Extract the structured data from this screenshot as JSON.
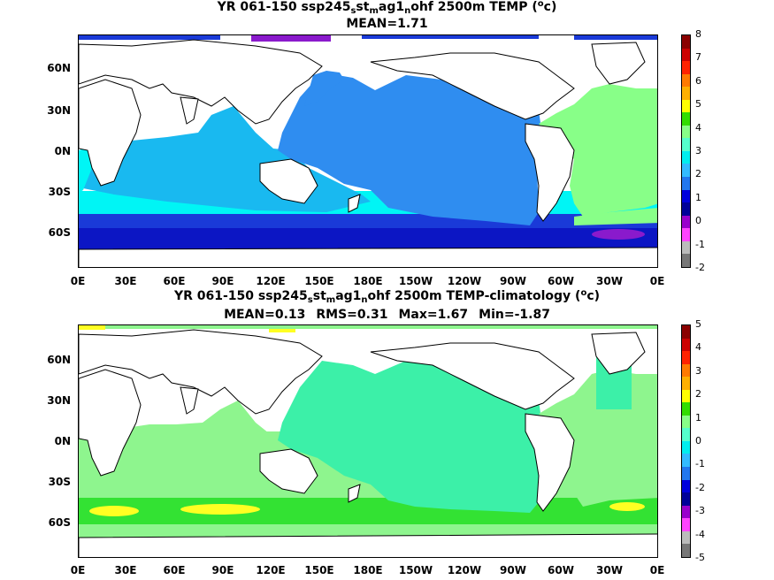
{
  "panel1": {
    "title_parts": [
      "YR 061-150 ssp245",
      "s",
      "st",
      "m",
      "ag1",
      "n",
      "ohf 2500m TEMP (",
      "o",
      "c)"
    ],
    "mean_label": "MEAN=1.71",
    "lat_labels": [
      "60N",
      "30N",
      "0N",
      "30S",
      "60S"
    ],
    "lon_labels": [
      "0E",
      "30E",
      "60E",
      "90E",
      "120E",
      "150E",
      "180E",
      "150W",
      "120W",
      "90W",
      "60W",
      "30W",
      "0E"
    ],
    "colorbar_labels": [
      "8",
      "7",
      "6",
      "5",
      "4",
      "3",
      "2",
      "1",
      "0",
      "-1",
      "-2"
    ],
    "colorbar_colors": [
      "#8b0000",
      "#cc0000",
      "#ff2200",
      "#ff7a00",
      "#ffb000",
      "#ffff00",
      "#33dd00",
      "#88ff88",
      "#55ffcc",
      "#00eeee",
      "#33bbff",
      "#2277ee",
      "#0000dd",
      "#000099",
      "#9900cc",
      "#ff44ff",
      "#bbbbbb",
      "#777777"
    ]
  },
  "panel2": {
    "title_parts": [
      "YR 061-150 ssp245",
      "s",
      "st",
      "m",
      "ag1",
      "n",
      "ohf 2500m TEMP-climatology (",
      "o",
      "c)"
    ],
    "stats": [
      "MEAN=0.13",
      "RMS=0.31",
      "Max=1.67",
      "Min=-1.87"
    ],
    "lat_labels": [
      "60N",
      "30N",
      "0N",
      "30S",
      "60S"
    ],
    "lon_labels": [
      "0E",
      "30E",
      "60E",
      "90E",
      "120E",
      "150E",
      "180E",
      "150W",
      "120W",
      "90W",
      "60W",
      "30W",
      "0E"
    ],
    "colorbar_labels": [
      "5",
      "4",
      "3",
      "2",
      "1",
      "0",
      "-1",
      "-2",
      "-3",
      "-4",
      "-5"
    ],
    "colorbar_colors": [
      "#8b0000",
      "#cc0000",
      "#ff2200",
      "#ff7a00",
      "#ffb000",
      "#ffff00",
      "#33dd00",
      "#88ff88",
      "#55ffcc",
      "#00eeee",
      "#33bbff",
      "#2277ee",
      "#0000dd",
      "#000099",
      "#9900cc",
      "#ff44ff",
      "#bbbbbb",
      "#777777"
    ]
  },
  "colors": {
    "ocean_main": "#2f8df0",
    "ocean_light": "#19b9f0",
    "ocean_cyan": "#00f5f5",
    "ocean_green": "#88ff88",
    "ocean_blue": "#1a3ad8",
    "ocean_darkblue": "#0c16c4",
    "ocean_purple": "#8a1acc",
    "diff_teal": "#3cf0a8",
    "diff_green": "#8ef58e",
    "diff_bright": "#33e233",
    "diff_yellow": "#ffff22",
    "land": "#ffffff"
  }
}
